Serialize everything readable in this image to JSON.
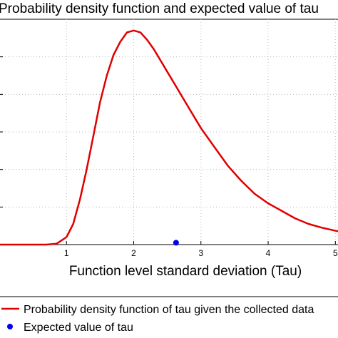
{
  "chart_data": {
    "type": "line",
    "title": "Probability density function and expected value of tau",
    "xlabel": "Function level standard deviation (Tau)",
    "ylabel": "",
    "xlim": [
      0,
      5.05
    ],
    "ylim": [
      0,
      0.6
    ],
    "xticks": [
      "1",
      "2",
      "3",
      "4",
      "5"
    ],
    "grid": "dotted",
    "series": [
      {
        "name": "Probability density function of tau given the collected data",
        "color": "#e00000",
        "x": [
          0.0,
          0.7,
          0.85,
          1.0,
          1.1,
          1.2,
          1.3,
          1.4,
          1.5,
          1.6,
          1.7,
          1.8,
          1.9,
          2.0,
          2.1,
          2.2,
          2.3,
          2.4,
          2.5,
          2.6,
          2.8,
          3.0,
          3.2,
          3.4,
          3.6,
          3.8,
          4.0,
          4.2,
          4.4,
          4.6,
          4.8,
          5.05
        ],
        "y": [
          0.0,
          0.0,
          0.002,
          0.02,
          0.055,
          0.12,
          0.2,
          0.29,
          0.38,
          0.45,
          0.505,
          0.54,
          0.565,
          0.57,
          0.565,
          0.545,
          0.52,
          0.49,
          0.46,
          0.43,
          0.37,
          0.31,
          0.26,
          0.21,
          0.17,
          0.135,
          0.11,
          0.09,
          0.07,
          0.055,
          0.045,
          0.035
        ]
      }
    ],
    "points": [
      {
        "name": "Expected value of tau",
        "color": "#0000ee",
        "x": 2.63,
        "y": 0.005
      }
    ]
  }
}
